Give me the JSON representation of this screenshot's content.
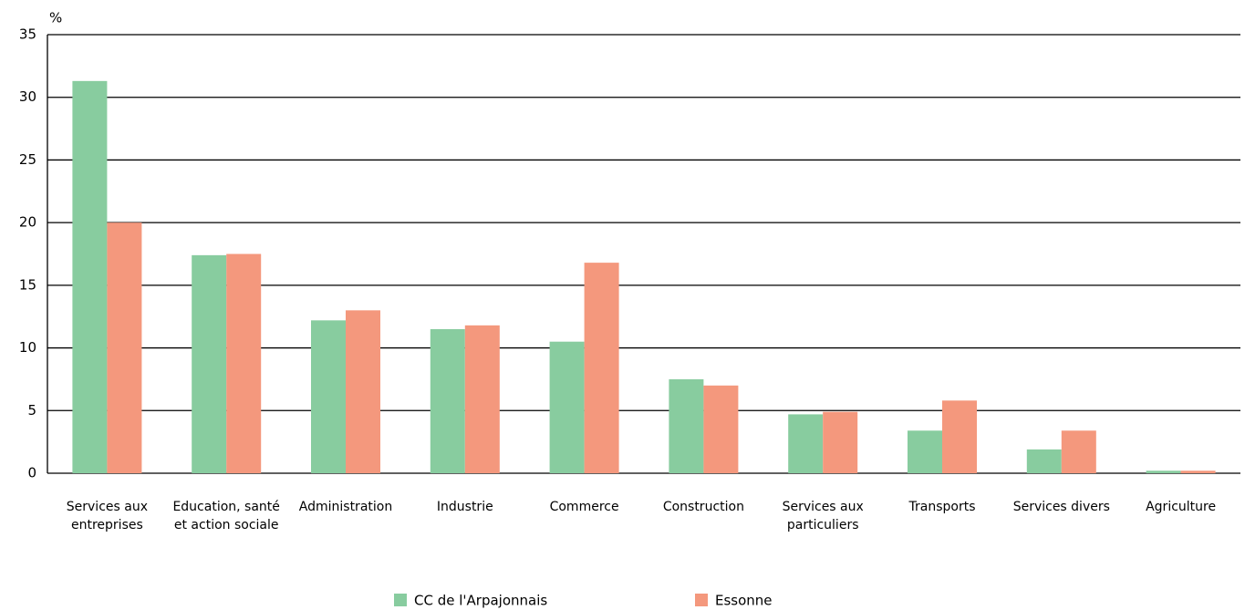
{
  "chart_data": {
    "type": "bar",
    "y_unit_label": "%",
    "categories": [
      "Services aux entreprises",
      "Education, santé et action sociale",
      "Administration",
      "Industrie",
      "Commerce",
      "Construction",
      "Services aux particuliers",
      "Transports",
      "Services divers",
      "Agriculture"
    ],
    "series": [
      {
        "name": "CC de l'Arpajonnais",
        "color": "#88cc9f",
        "values": [
          31.3,
          17.4,
          12.2,
          11.5,
          10.5,
          7.5,
          4.7,
          3.4,
          1.9,
          0.2
        ]
      },
      {
        "name": "Essonne",
        "color": "#f4987d",
        "values": [
          20.0,
          17.5,
          13.0,
          11.8,
          16.8,
          7.0,
          4.9,
          5.8,
          3.4,
          0.2
        ]
      }
    ],
    "ylim": [
      0,
      35
    ],
    "yticks": [
      0,
      5,
      10,
      15,
      20,
      25,
      30,
      35
    ],
    "grid": true
  }
}
